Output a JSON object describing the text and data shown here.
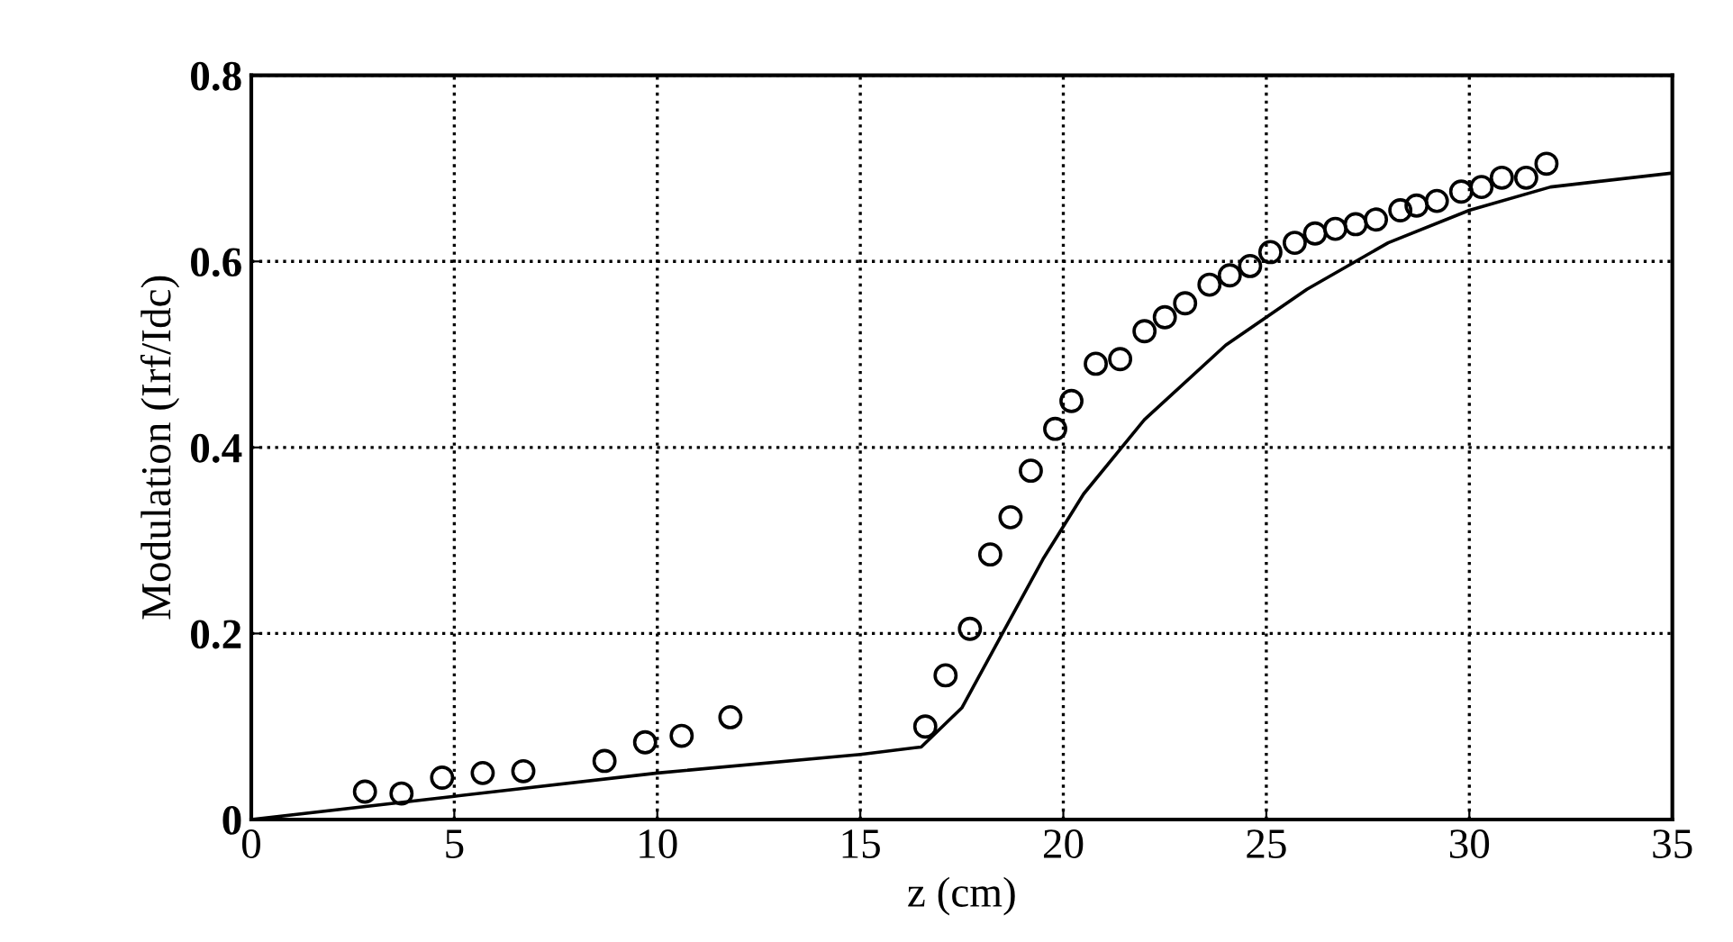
{
  "chart_data": {
    "type": "scatter",
    "xlabel": "z (cm)",
    "ylabel": "Modulation (Irf/Idc)",
    "xlim": [
      0,
      35
    ],
    "ylim": [
      0,
      0.8
    ],
    "xticks": [
      0,
      5,
      10,
      15,
      20,
      25,
      30,
      35
    ],
    "yticks": [
      0,
      0.2,
      0.4,
      0.6,
      0.8
    ],
    "grid": true,
    "series": [
      {
        "marker": "circle",
        "color": "#000000",
        "x": [
          2.8,
          3.7,
          4.7,
          5.7,
          6.7,
          8.7,
          9.7,
          10.6,
          11.8,
          16.6,
          17.1,
          17.7,
          18.2,
          18.7,
          19.2,
          19.8,
          20.2,
          20.8,
          21.4,
          22.0,
          22.5,
          23.0,
          23.6,
          24.1,
          24.6,
          25.1,
          25.7,
          26.2,
          26.7,
          27.2,
          27.7,
          28.3,
          28.7,
          29.2,
          29.8,
          30.3,
          30.8,
          31.4,
          31.9
        ],
        "values": [
          0.03,
          0.028,
          0.045,
          0.05,
          0.052,
          0.063,
          0.083,
          0.09,
          0.11,
          0.1,
          0.155,
          0.205,
          0.285,
          0.325,
          0.375,
          0.42,
          0.45,
          0.49,
          0.495,
          0.525,
          0.54,
          0.555,
          0.575,
          0.585,
          0.595,
          0.61,
          0.62,
          0.63,
          0.635,
          0.64,
          0.645,
          0.655,
          0.66,
          0.665,
          0.675,
          0.68,
          0.69,
          0.69,
          0.705
        ]
      },
      {
        "type": "line",
        "line_style": "solid",
        "color": "#000000",
        "x": [
          0,
          5,
          10,
          15,
          16.5,
          17.5,
          18.5,
          19.5,
          20.5,
          22,
          24,
          26,
          28,
          30,
          32,
          35
        ],
        "values": [
          0,
          0.025,
          0.05,
          0.07,
          0.078,
          0.12,
          0.2,
          0.28,
          0.35,
          0.43,
          0.51,
          0.57,
          0.62,
          0.655,
          0.68,
          0.695
        ]
      }
    ]
  }
}
